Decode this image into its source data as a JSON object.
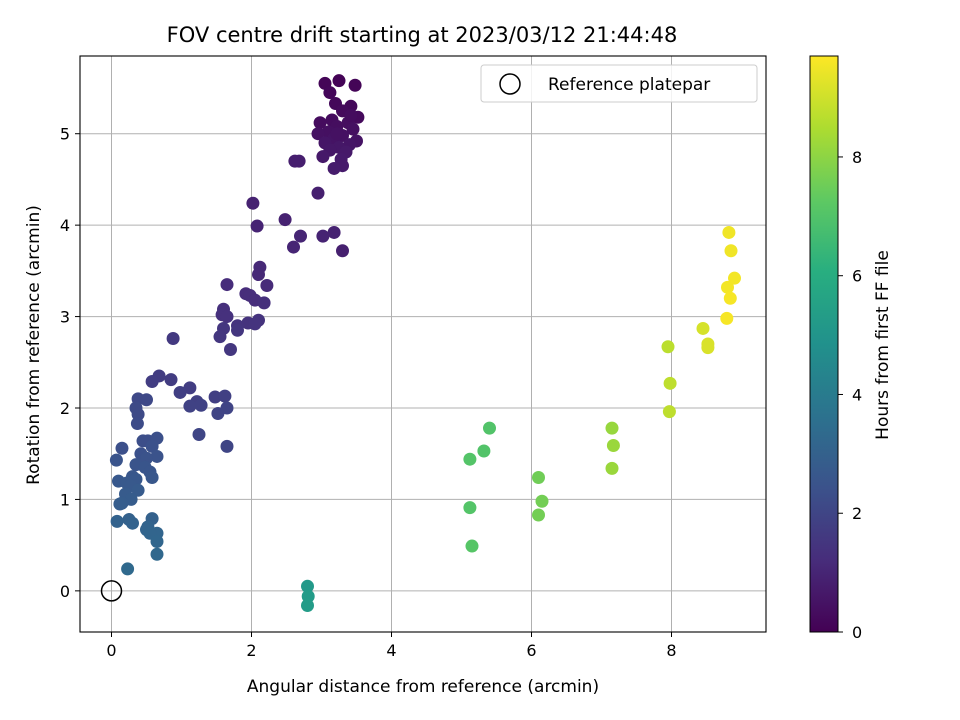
{
  "chart_data": {
    "type": "scatter",
    "title": "FOV centre drift starting at 2023/03/12 21:44:48",
    "xlabel": "Angular distance from reference (arcmin)",
    "ylabel": "Rotation from reference (arcmin)",
    "xlim": [
      -0.45,
      9.35
    ],
    "ylim": [
      -0.45,
      5.85
    ],
    "xticks": [
      "0",
      "2",
      "4",
      "6",
      "8"
    ],
    "yticks": [
      "0",
      "1",
      "2",
      "3",
      "4",
      "5"
    ],
    "grid": true,
    "legend_position": "top-right",
    "legend": [
      {
        "label": "Reference platepar",
        "marker": "open-circle"
      }
    ],
    "reference_point": {
      "x": 0,
      "y": 0
    },
    "colorbar": {
      "label": "Hours from first FF file",
      "colormap": "viridis",
      "range": [
        0,
        9.7
      ],
      "ticks": [
        "0",
        "2",
        "4",
        "6",
        "8"
      ]
    },
    "points": [
      {
        "x": 3.25,
        "y": 5.58,
        "h": 0.05
      },
      {
        "x": 3.05,
        "y": 5.55,
        "h": 0.1
      },
      {
        "x": 3.48,
        "y": 5.53,
        "h": 0.1
      },
      {
        "x": 3.12,
        "y": 5.45,
        "h": 0.15
      },
      {
        "x": 3.2,
        "y": 5.33,
        "h": 0.2
      },
      {
        "x": 3.42,
        "y": 5.3,
        "h": 0.2
      },
      {
        "x": 3.3,
        "y": 5.25,
        "h": 0.25
      },
      {
        "x": 3.52,
        "y": 5.18,
        "h": 0.25
      },
      {
        "x": 3.15,
        "y": 5.15,
        "h": 0.3
      },
      {
        "x": 2.98,
        "y": 5.12,
        "h": 0.3
      },
      {
        "x": 3.38,
        "y": 5.12,
        "h": 0.35
      },
      {
        "x": 3.22,
        "y": 5.08,
        "h": 0.35
      },
      {
        "x": 3.45,
        "y": 5.05,
        "h": 0.4
      },
      {
        "x": 3.1,
        "y": 5.02,
        "h": 0.4
      },
      {
        "x": 2.95,
        "y": 5.0,
        "h": 0.45
      },
      {
        "x": 3.3,
        "y": 4.98,
        "h": 0.45
      },
      {
        "x": 3.18,
        "y": 4.95,
        "h": 0.5
      },
      {
        "x": 3.5,
        "y": 4.92,
        "h": 0.5
      },
      {
        "x": 3.05,
        "y": 4.9,
        "h": 0.55
      },
      {
        "x": 3.4,
        "y": 4.88,
        "h": 0.55
      },
      {
        "x": 3.25,
        "y": 4.85,
        "h": 0.6
      },
      {
        "x": 3.12,
        "y": 4.82,
        "h": 0.6
      },
      {
        "x": 3.35,
        "y": 4.8,
        "h": 0.65
      },
      {
        "x": 3.02,
        "y": 4.75,
        "h": 0.65
      },
      {
        "x": 3.28,
        "y": 4.72,
        "h": 0.7
      },
      {
        "x": 3.3,
        "y": 4.65,
        "h": 0.7
      },
      {
        "x": 3.18,
        "y": 4.62,
        "h": 0.75
      },
      {
        "x": 3.42,
        "y": 5.2,
        "h": 0.3
      },
      {
        "x": 3.22,
        "y": 5.0,
        "h": 0.45
      },
      {
        "x": 2.62,
        "y": 4.7,
        "h": 0.8
      },
      {
        "x": 2.68,
        "y": 4.7,
        "h": 0.8
      },
      {
        "x": 2.95,
        "y": 4.35,
        "h": 0.85
      },
      {
        "x": 2.02,
        "y": 4.24,
        "h": 0.9
      },
      {
        "x": 2.48,
        "y": 4.06,
        "h": 0.9
      },
      {
        "x": 2.08,
        "y": 3.99,
        "h": 0.95
      },
      {
        "x": 3.18,
        "y": 3.92,
        "h": 0.9
      },
      {
        "x": 3.02,
        "y": 3.88,
        "h": 0.95
      },
      {
        "x": 2.7,
        "y": 3.88,
        "h": 1.0
      },
      {
        "x": 2.6,
        "y": 3.76,
        "h": 1.0
      },
      {
        "x": 3.3,
        "y": 3.72,
        "h": 0.85
      },
      {
        "x": 2.12,
        "y": 3.54,
        "h": 1.1
      },
      {
        "x": 2.1,
        "y": 3.46,
        "h": 1.1
      },
      {
        "x": 1.65,
        "y": 3.35,
        "h": 1.2
      },
      {
        "x": 2.22,
        "y": 3.34,
        "h": 1.15
      },
      {
        "x": 1.92,
        "y": 3.25,
        "h": 1.2
      },
      {
        "x": 1.98,
        "y": 3.23,
        "h": 1.25
      },
      {
        "x": 2.05,
        "y": 3.18,
        "h": 1.25
      },
      {
        "x": 2.18,
        "y": 3.15,
        "h": 1.3
      },
      {
        "x": 1.6,
        "y": 3.08,
        "h": 1.3
      },
      {
        "x": 1.58,
        "y": 3.02,
        "h": 1.35
      },
      {
        "x": 1.65,
        "y": 3.0,
        "h": 1.35
      },
      {
        "x": 2.1,
        "y": 2.96,
        "h": 1.4
      },
      {
        "x": 1.95,
        "y": 2.93,
        "h": 1.4
      },
      {
        "x": 2.05,
        "y": 2.92,
        "h": 1.45
      },
      {
        "x": 1.8,
        "y": 2.9,
        "h": 1.45
      },
      {
        "x": 1.6,
        "y": 2.87,
        "h": 1.5
      },
      {
        "x": 1.8,
        "y": 2.85,
        "h": 1.5
      },
      {
        "x": 1.55,
        "y": 2.78,
        "h": 1.55
      },
      {
        "x": 0.88,
        "y": 2.76,
        "h": 1.6
      },
      {
        "x": 1.7,
        "y": 2.64,
        "h": 1.55
      },
      {
        "x": 0.68,
        "y": 2.35,
        "h": 1.7
      },
      {
        "x": 0.85,
        "y": 2.31,
        "h": 1.7
      },
      {
        "x": 0.58,
        "y": 2.29,
        "h": 1.75
      },
      {
        "x": 1.12,
        "y": 2.22,
        "h": 1.75
      },
      {
        "x": 0.98,
        "y": 2.17,
        "h": 1.8
      },
      {
        "x": 1.48,
        "y": 2.12,
        "h": 1.8
      },
      {
        "x": 1.62,
        "y": 2.13,
        "h": 1.85
      },
      {
        "x": 1.22,
        "y": 2.07,
        "h": 1.85
      },
      {
        "x": 1.28,
        "y": 2.03,
        "h": 1.9
      },
      {
        "x": 1.12,
        "y": 2.02,
        "h": 1.9
      },
      {
        "x": 1.65,
        "y": 2.0,
        "h": 1.95
      },
      {
        "x": 1.52,
        "y": 1.94,
        "h": 1.95
      },
      {
        "x": 1.25,
        "y": 1.71,
        "h": 2.0
      },
      {
        "x": 1.65,
        "y": 1.58,
        "h": 2.0
      },
      {
        "x": 0.38,
        "y": 2.1,
        "h": 2.1
      },
      {
        "x": 0.5,
        "y": 2.09,
        "h": 2.1
      },
      {
        "x": 0.35,
        "y": 2.0,
        "h": 2.15
      },
      {
        "x": 0.38,
        "y": 1.93,
        "h": 2.15
      },
      {
        "x": 0.37,
        "y": 1.83,
        "h": 2.2
      },
      {
        "x": 0.45,
        "y": 1.64,
        "h": 2.3
      },
      {
        "x": 0.52,
        "y": 1.64,
        "h": 2.3
      },
      {
        "x": 0.65,
        "y": 1.67,
        "h": 2.35
      },
      {
        "x": 0.15,
        "y": 1.56,
        "h": 2.35
      },
      {
        "x": 0.58,
        "y": 1.58,
        "h": 2.4
      },
      {
        "x": 0.42,
        "y": 1.5,
        "h": 2.4
      },
      {
        "x": 0.65,
        "y": 1.47,
        "h": 2.45
      },
      {
        "x": 0.5,
        "y": 1.45,
        "h": 2.45
      },
      {
        "x": 0.07,
        "y": 1.43,
        "h": 2.5
      },
      {
        "x": 0.35,
        "y": 1.38,
        "h": 2.5
      },
      {
        "x": 0.48,
        "y": 1.35,
        "h": 2.55
      },
      {
        "x": 0.55,
        "y": 1.3,
        "h": 2.55
      },
      {
        "x": 0.3,
        "y": 1.25,
        "h": 2.6
      },
      {
        "x": 0.58,
        "y": 1.24,
        "h": 2.6
      },
      {
        "x": 0.35,
        "y": 1.22,
        "h": 2.65
      },
      {
        "x": 0.1,
        "y": 1.2,
        "h": 2.65
      },
      {
        "x": 0.22,
        "y": 1.18,
        "h": 2.7
      },
      {
        "x": 0.27,
        "y": 1.15,
        "h": 2.7
      },
      {
        "x": 0.38,
        "y": 1.1,
        "h": 2.75
      },
      {
        "x": 0.2,
        "y": 1.06,
        "h": 2.75
      },
      {
        "x": 0.28,
        "y": 1.0,
        "h": 2.8
      },
      {
        "x": 0.15,
        "y": 0.96,
        "h": 2.8
      },
      {
        "x": 0.12,
        "y": 0.95,
        "h": 2.85
      },
      {
        "x": 0.58,
        "y": 0.79,
        "h": 3.0
      },
      {
        "x": 0.25,
        "y": 0.78,
        "h": 3.0
      },
      {
        "x": 0.08,
        "y": 0.76,
        "h": 3.05
      },
      {
        "x": 0.3,
        "y": 0.74,
        "h": 3.05
      },
      {
        "x": 0.52,
        "y": 0.7,
        "h": 3.1
      },
      {
        "x": 0.5,
        "y": 0.67,
        "h": 3.1
      },
      {
        "x": 0.65,
        "y": 0.63,
        "h": 3.15
      },
      {
        "x": 0.55,
        "y": 0.63,
        "h": 3.15
      },
      {
        "x": 0.65,
        "y": 0.54,
        "h": 3.2
      },
      {
        "x": 0.65,
        "y": 0.4,
        "h": 3.25
      },
      {
        "x": 0.23,
        "y": 0.24,
        "h": 3.3
      },
      {
        "x": 2.8,
        "y": 0.05,
        "h": 5.2
      },
      {
        "x": 2.81,
        "y": -0.06,
        "h": 5.25
      },
      {
        "x": 2.8,
        "y": -0.16,
        "h": 5.3
      },
      {
        "x": 5.4,
        "y": 1.78,
        "h": 7.0
      },
      {
        "x": 5.32,
        "y": 1.53,
        "h": 7.0
      },
      {
        "x": 5.12,
        "y": 1.44,
        "h": 7.05
      },
      {
        "x": 5.12,
        "y": 0.91,
        "h": 7.05
      },
      {
        "x": 5.15,
        "y": 0.49,
        "h": 7.1
      },
      {
        "x": 6.1,
        "y": 1.24,
        "h": 7.55
      },
      {
        "x": 6.15,
        "y": 0.98,
        "h": 7.6
      },
      {
        "x": 6.1,
        "y": 0.83,
        "h": 7.6
      },
      {
        "x": 7.15,
        "y": 1.78,
        "h": 8.15
      },
      {
        "x": 7.17,
        "y": 1.59,
        "h": 8.2
      },
      {
        "x": 7.15,
        "y": 1.34,
        "h": 8.2
      },
      {
        "x": 7.95,
        "y": 2.67,
        "h": 8.7
      },
      {
        "x": 7.98,
        "y": 2.27,
        "h": 8.75
      },
      {
        "x": 7.97,
        "y": 1.96,
        "h": 8.75
      },
      {
        "x": 8.45,
        "y": 2.87,
        "h": 9.1
      },
      {
        "x": 8.52,
        "y": 2.7,
        "h": 9.15
      },
      {
        "x": 8.52,
        "y": 2.66,
        "h": 9.15
      },
      {
        "x": 8.82,
        "y": 3.92,
        "h": 9.5
      },
      {
        "x": 8.85,
        "y": 3.72,
        "h": 9.5
      },
      {
        "x": 8.9,
        "y": 3.42,
        "h": 9.55
      },
      {
        "x": 8.8,
        "y": 3.32,
        "h": 9.55
      },
      {
        "x": 8.84,
        "y": 3.2,
        "h": 9.6
      },
      {
        "x": 8.79,
        "y": 2.98,
        "h": 9.6
      }
    ]
  }
}
